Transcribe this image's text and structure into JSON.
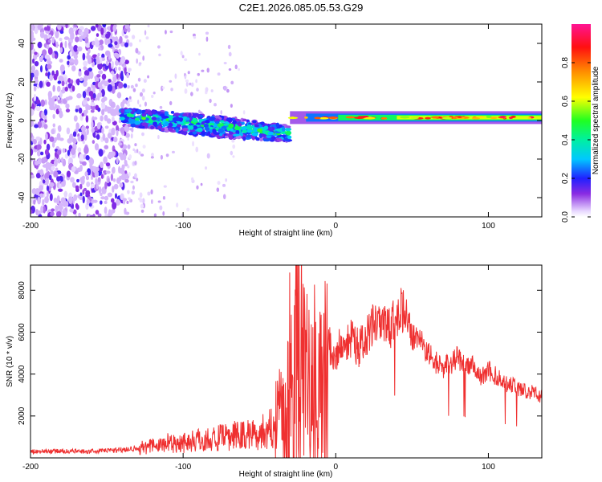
{
  "title": "C2E1.2026.085.05.53.G29",
  "chart_data": [
    {
      "type": "heatmap",
      "xlabel": "Height of straight line (km)",
      "ylabel": "Frequency (Hz)",
      "xlim": [
        -200,
        135
      ],
      "ylim": [
        -50,
        50
      ],
      "xticks": [
        -200,
        -100,
        0,
        100
      ],
      "xtick_labels": [
        "-200",
        "-100",
        "0",
        "100"
      ],
      "yticks": [
        -40,
        -20,
        0,
        20,
        40
      ],
      "ytick_labels": [
        "-40",
        "-20",
        "0",
        "20",
        "40"
      ],
      "colorbar": {
        "label": "Normalized spectral amplitude",
        "range": [
          0,
          1
        ],
        "ticks": [
          0.0,
          0.2,
          0.4,
          0.6,
          0.8
        ],
        "tick_labels": [
          "0.0",
          "0.2",
          "0.4",
          "0.6",
          "0.8"
        ]
      },
      "regions": [
        {
          "name": "noise",
          "x_range": [
            -200,
            -136
          ],
          "freq_range": [
            -50,
            50
          ],
          "amplitude": 0.15
        },
        {
          "name": "sparse-noise",
          "x_range": [
            -136,
            -60
          ],
          "freq_range": [
            -50,
            50
          ],
          "amplitude": 0.05
        },
        {
          "name": "signal-onset",
          "x_range": [
            -140,
            -30
          ],
          "freq_center_start": 2,
          "freq_center_end": -7,
          "amplitude": 0.35
        },
        {
          "name": "signal-track",
          "x_range": [
            -30,
            135
          ],
          "freq_center": 1.5,
          "amplitude": 0.9
        }
      ]
    },
    {
      "type": "line",
      "xlabel": "Height of straight line (km)",
      "ylabel": "SNR (10 * v/v)",
      "xlim": [
        -200,
        135
      ],
      "ylim": [
        0,
        9200
      ],
      "xticks": [
        -200,
        -100,
        0,
        100
      ],
      "xtick_labels": [
        "-200",
        "-100",
        "0",
        "100"
      ],
      "yticks": [
        2000,
        4000,
        6000,
        8000
      ],
      "ytick_labels": [
        "2000",
        "4000",
        "6000",
        "8000"
      ],
      "series": [
        {
          "name": "SNR",
          "color": "#ef3030",
          "x": [
            -200,
            -180,
            -160,
            -140,
            -125,
            -110,
            -100,
            -90,
            -80,
            -70,
            -60,
            -50,
            -45,
            -40,
            -35,
            -30,
            -25,
            -20,
            -15,
            -10,
            -8,
            -5,
            0,
            5,
            10,
            15,
            20,
            25,
            30,
            35,
            40,
            45,
            50,
            55,
            60,
            65,
            70,
            75,
            80,
            85,
            90,
            95,
            100,
            105,
            110,
            115,
            120,
            125,
            130,
            135
          ],
          "values": [
            300,
            320,
            310,
            400,
            500,
            700,
            750,
            850,
            900,
            1000,
            1100,
            1200,
            1300,
            1500,
            2000,
            3500,
            5200,
            4500,
            3200,
            3500,
            2500,
            5500,
            4900,
            5600,
            5800,
            5200,
            5700,
            6400,
            6200,
            6100,
            6800,
            7200,
            5700,
            5600,
            5000,
            4600,
            4300,
            4500,
            4800,
            4300,
            4500,
            3800,
            4200,
            3900,
            3600,
            3500,
            3300,
            3200,
            3100,
            2900
          ]
        }
      ]
    }
  ]
}
